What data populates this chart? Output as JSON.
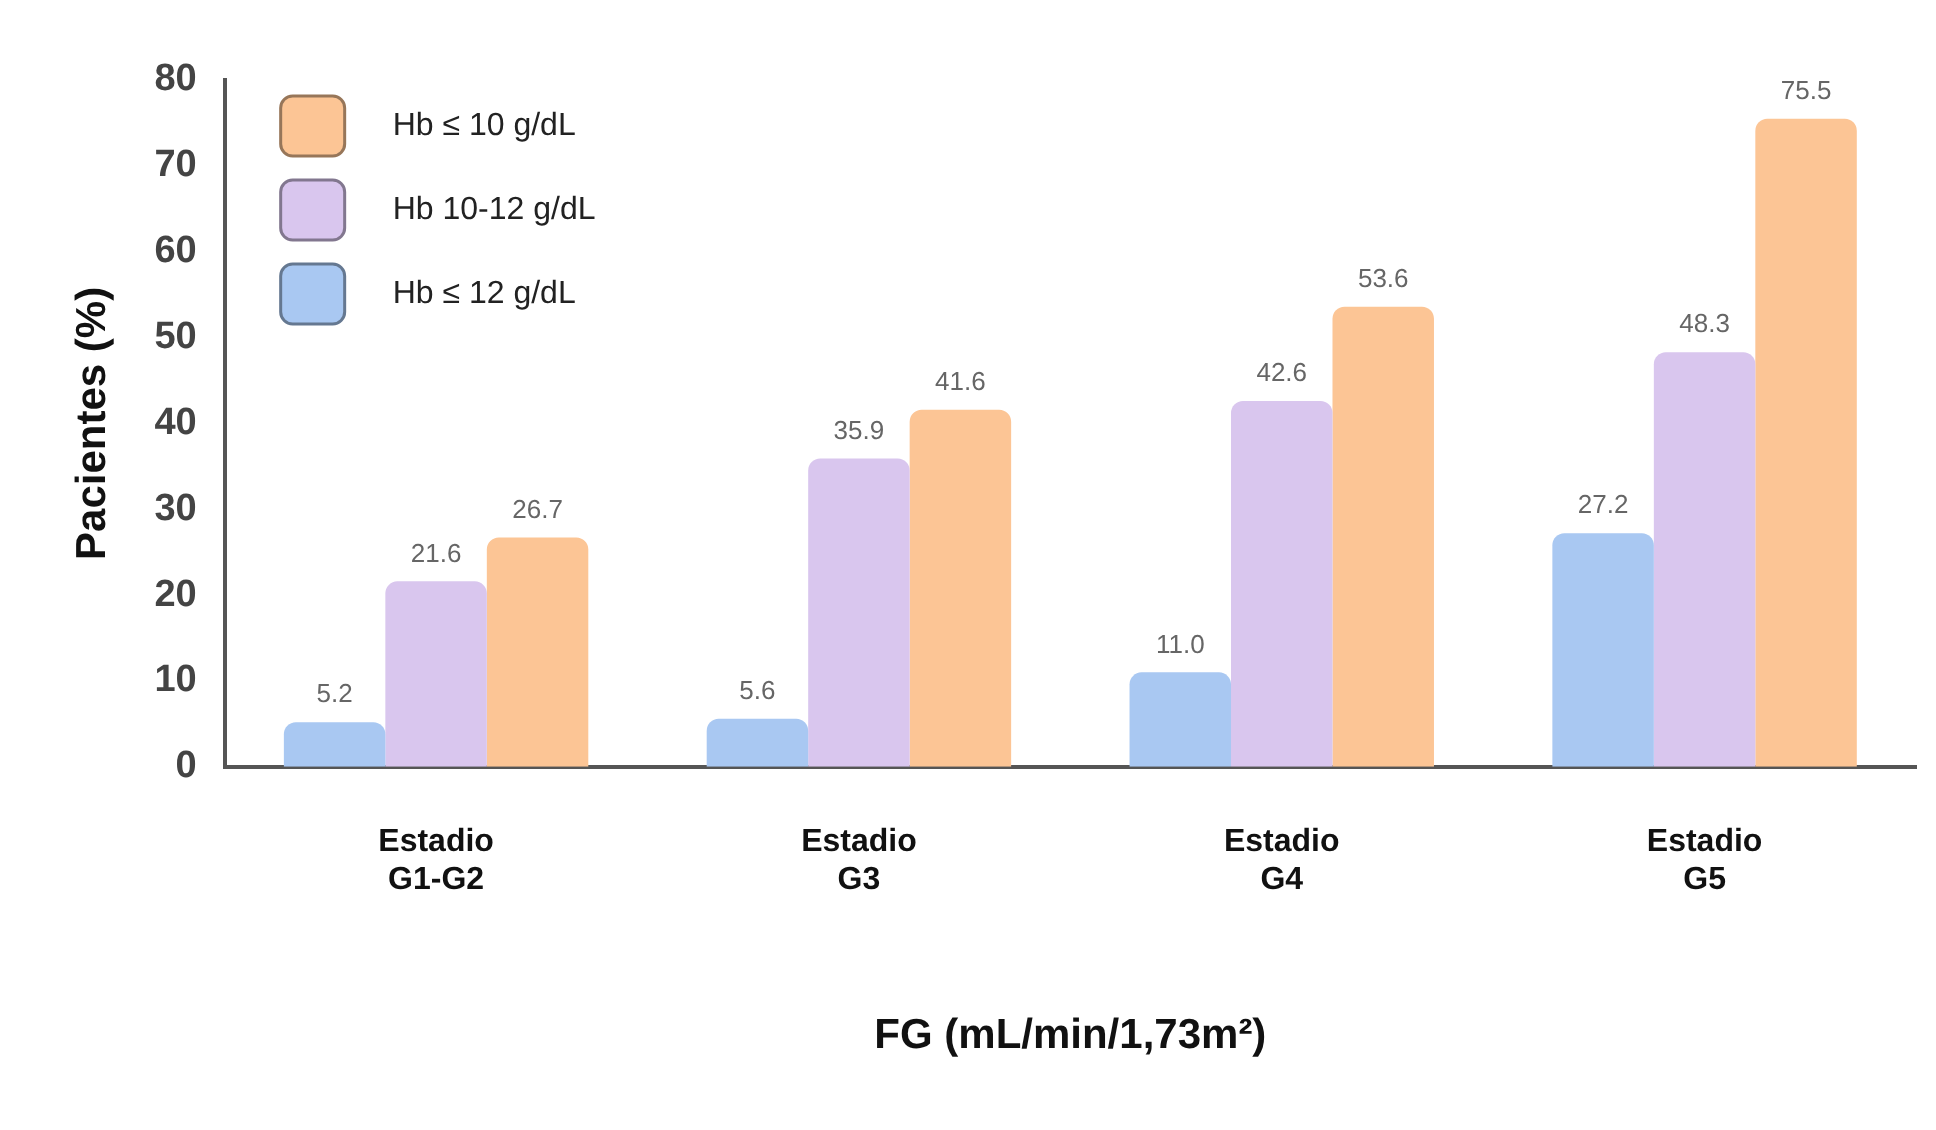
{
  "chart_data": {
    "type": "bar",
    "xlabel": "FG (mL/min/1,73m²)",
    "ylabel": "Pacientes (%)",
    "categories": [
      "Estadio G1-G2",
      "Estadio G3",
      "Estadio G4",
      "Estadio G5"
    ],
    "series": [
      {
        "name": "Hb ≤ 12 g/dL",
        "color": "#a9c8f2",
        "values": [
          5.2,
          5.6,
          11.0,
          27.2
        ],
        "value_labels": [
          "5.2",
          "5.6",
          "11.0",
          "27.2"
        ]
      },
      {
        "name": "Hb 10-12 g/dL",
        "color": "#d9c6ee",
        "values": [
          21.6,
          35.9,
          42.6,
          48.3
        ]
      },
      {
        "name": "Hb ≤ 10 g/dL",
        "color": "#fcc595",
        "values": [
          26.7,
          41.6,
          53.6,
          75.5
        ]
      }
    ],
    "ylim": [
      0,
      80
    ],
    "yticks": [
      0,
      10,
      20,
      30,
      40,
      50,
      60,
      70,
      80
    ],
    "grid": false,
    "legend": "top left",
    "data_labels": true
  }
}
